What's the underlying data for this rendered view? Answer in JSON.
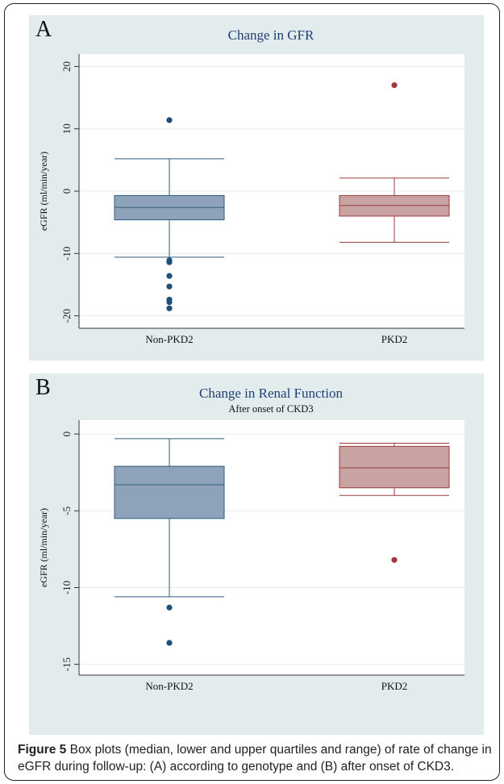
{
  "chart_data": [
    {
      "type": "box",
      "panel_label": "A",
      "title": "Change in GFR",
      "subtitle": "",
      "ylabel": "eGFR (ml/min/year)",
      "ylim": [
        -22,
        22
      ],
      "yticks": [
        20,
        10,
        0,
        -10,
        -20
      ],
      "grid": true,
      "categories": [
        "Non-PKD2",
        "PKD2"
      ],
      "boxes": [
        {
          "category": "Non-PKD2",
          "whisker_high": 5.2,
          "q3": -0.7,
          "median": -2.6,
          "q1": -4.6,
          "whisker_low": -10.6,
          "outliers": [
            11.4,
            -11.1,
            -11.4,
            -13.6,
            -15.3,
            -17.4,
            -17.8,
            -18.8
          ],
          "color": "#8ea3b9",
          "outline": "#2e5c7d",
          "dot_color": "#1f4e79"
        },
        {
          "category": "PKD2",
          "whisker_high": 2.1,
          "q3": -0.7,
          "median": -2.3,
          "q1": -4.0,
          "whisker_low": -8.2,
          "outliers": [
            17.0
          ],
          "color": "#c9a3a3",
          "outline": "#9a3a3d",
          "dot_color": "#9e3a3e"
        }
      ]
    },
    {
      "type": "box",
      "panel_label": "B",
      "title": "Change in Renal Function",
      "subtitle": "After onset of CKD3",
      "ylabel": "eGFR (ml/min/year)",
      "ylim": [
        -15.7,
        0.9
      ],
      "yticks": [
        0,
        -5,
        -10,
        -15
      ],
      "grid": true,
      "categories": [
        "Non-PKD2",
        "PKD2"
      ],
      "boxes": [
        {
          "category": "Non-PKD2",
          "whisker_high": -0.3,
          "q3": -2.1,
          "median": -3.3,
          "q1": -5.5,
          "whisker_low": -10.6,
          "outliers": [
            -11.3,
            -13.6
          ],
          "color": "#8ea3b9",
          "outline": "#2e5c7d",
          "dot_color": "#1f4e79"
        },
        {
          "category": "PKD2",
          "whisker_high": -0.6,
          "q3": -0.8,
          "median": -2.2,
          "q1": -3.5,
          "whisker_low": -4.0,
          "outliers": [
            -8.2
          ],
          "color": "#c9a3a3",
          "outline": "#9a3a3d",
          "dot_color": "#9e3a3e"
        }
      ]
    }
  ],
  "caption": {
    "label": "Figure 5",
    "text": " Box plots (median, lower and upper quartiles and range) of rate of change in eGFR during follow-up: (A) according to genotype and (B) after onset of CKD3."
  }
}
